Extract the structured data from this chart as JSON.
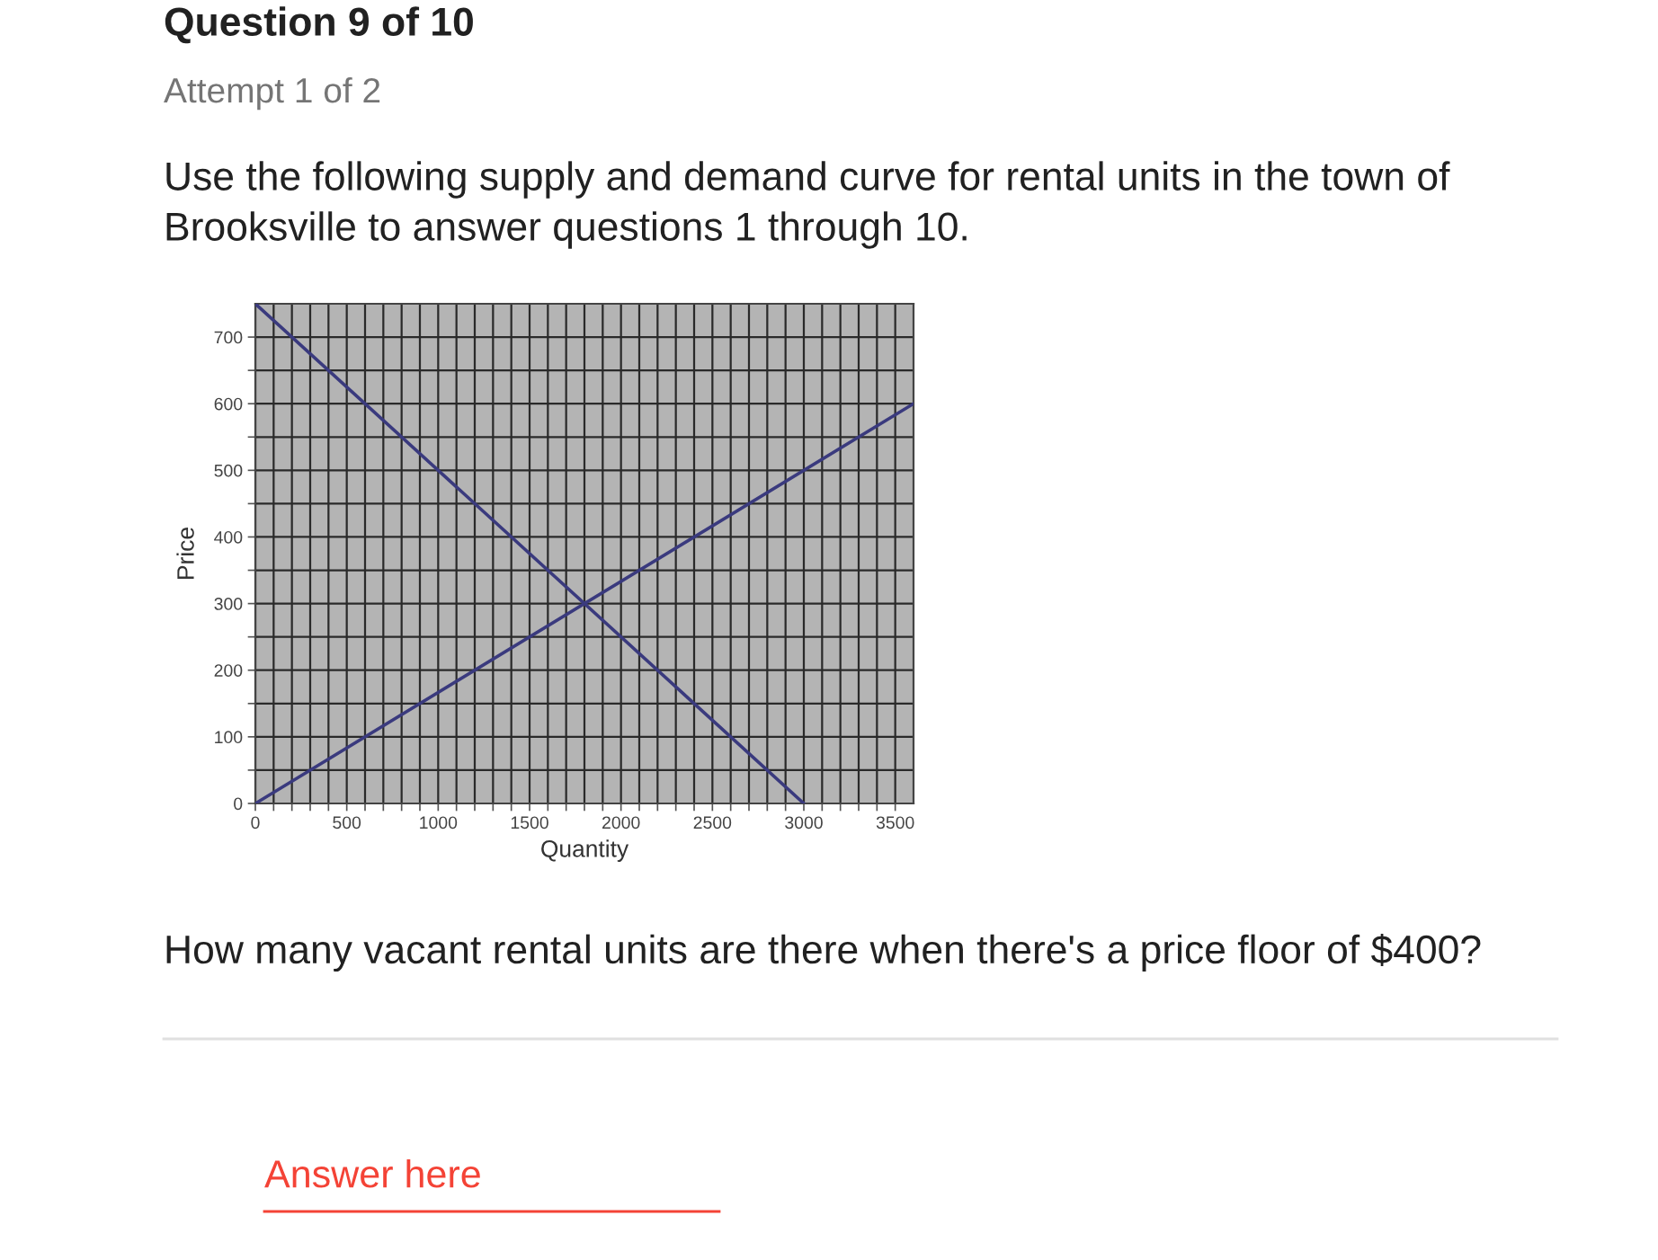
{
  "chart_data": {
    "type": "line",
    "title": "Question 9 of 10",
    "subtitle": "Attempt 1 of 2",
    "xlabel": "Quantity",
    "ylabel": "Price",
    "annotations": [
      "Use the following supply and demand curve for rental units in the town of\nBrooksville to answer questions 1 through 10.",
      "How many vacant rental units are there when there's a price floor of $400?",
      "Answer here"
    ],
    "series": [
      {
        "color": "#3a3a7e",
        "x": [
          0,
          3000
        ],
        "values": [
          750,
          0
        ]
      },
      {
        "color": "#3a3a7e",
        "x": [
          0,
          3600
        ],
        "values": [
          0,
          600
        ]
      }
    ],
    "xlim": [
      0,
      3600
    ],
    "ylim": [
      0,
      750
    ],
    "xticks": [
      0,
      {
        "value": 100,
        "label": null
      },
      {
        "value": 200,
        "label": null
      },
      {
        "value": 300,
        "label": null
      },
      {
        "value": 400,
        "label": null
      },
      500,
      {
        "value": 600,
        "label": null
      },
      {
        "value": 700,
        "label": null
      },
      {
        "value": 800,
        "label": null
      },
      {
        "value": 900,
        "label": null
      },
      1000,
      {
        "value": 1100,
        "label": null
      },
      {
        "value": 1200,
        "label": null
      },
      {
        "value": 1300,
        "label": null
      },
      {
        "value": 1400,
        "label": null
      },
      1500,
      {
        "value": 1600,
        "label": null
      },
      {
        "value": 1700,
        "label": null
      },
      {
        "value": 1800,
        "label": null
      },
      {
        "value": 1900,
        "label": null
      },
      2000,
      {
        "value": 2100,
        "label": null
      },
      {
        "value": 2200,
        "label": null
      },
      {
        "value": 2300,
        "label": null
      },
      {
        "value": 2400,
        "label": null
      },
      2500,
      {
        "value": 2600,
        "label": null
      },
      {
        "value": 2700,
        "label": null
      },
      {
        "value": 2800,
        "label": null
      },
      {
        "value": 2900,
        "label": null
      },
      3000,
      {
        "value": 3100,
        "label": null
      },
      {
        "value": 3200,
        "label": null
      },
      {
        "value": 3300,
        "label": null
      },
      {
        "value": 3400,
        "label": null
      },
      3500
    ],
    "yticks": [
      0,
      {
        "value": 50,
        "label": null
      },
      100,
      {
        "value": 150,
        "label": null
      },
      200,
      {
        "value": 250,
        "label": null
      },
      300,
      {
        "value": 350,
        "label": null
      },
      400,
      {
        "value": 450,
        "label": null
      },
      500,
      {
        "value": 550,
        "label": null
      },
      600,
      {
        "value": 650,
        "label": null
      },
      700
    ],
    "grid": true
  }
}
